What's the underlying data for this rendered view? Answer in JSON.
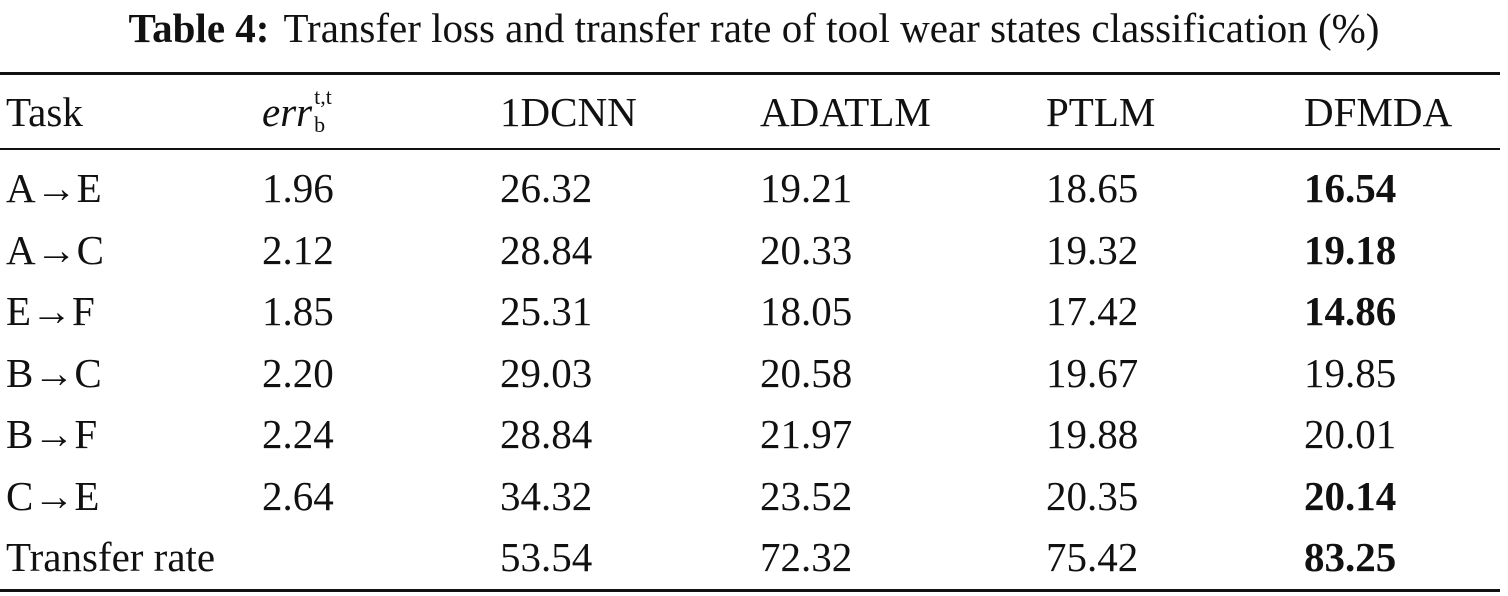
{
  "title": {
    "label": "Table 4:",
    "text": "Transfer loss and transfer rate of tool wear states classification (%)"
  },
  "table": {
    "header": [
      "Task",
      {
        "base": "err",
        "sup": "t,t",
        "sub": "b"
      },
      "1DCNN",
      "ADATLM",
      "PTLM",
      "DFMDA"
    ],
    "rows": [
      {
        "cells": [
          "A→E",
          "1.96",
          "26.32",
          "19.21",
          "18.65",
          "16.54"
        ],
        "bold": [
          5
        ]
      },
      {
        "cells": [
          "A→C",
          "2.12",
          "28.84",
          "20.33",
          "19.32",
          "19.18"
        ],
        "bold": [
          5
        ]
      },
      {
        "cells": [
          "E→F",
          "1.85",
          "25.31",
          "18.05",
          "17.42",
          "14.86"
        ],
        "bold": [
          5
        ]
      },
      {
        "cells": [
          "B→C",
          "2.20",
          "29.03",
          "20.58",
          "19.67",
          "19.85"
        ],
        "bold": []
      },
      {
        "cells": [
          "B→F",
          "2.24",
          "28.84",
          "21.97",
          "19.88",
          "20.01"
        ],
        "bold": []
      },
      {
        "cells": [
          "C→E",
          "2.64",
          "34.32",
          "23.52",
          "20.35",
          "20.14"
        ],
        "bold": [
          5
        ]
      },
      {
        "cells": [
          "Transfer rate",
          null,
          "53.54",
          "72.32",
          "75.42",
          "83.25"
        ],
        "bold": [
          5
        ]
      }
    ]
  }
}
